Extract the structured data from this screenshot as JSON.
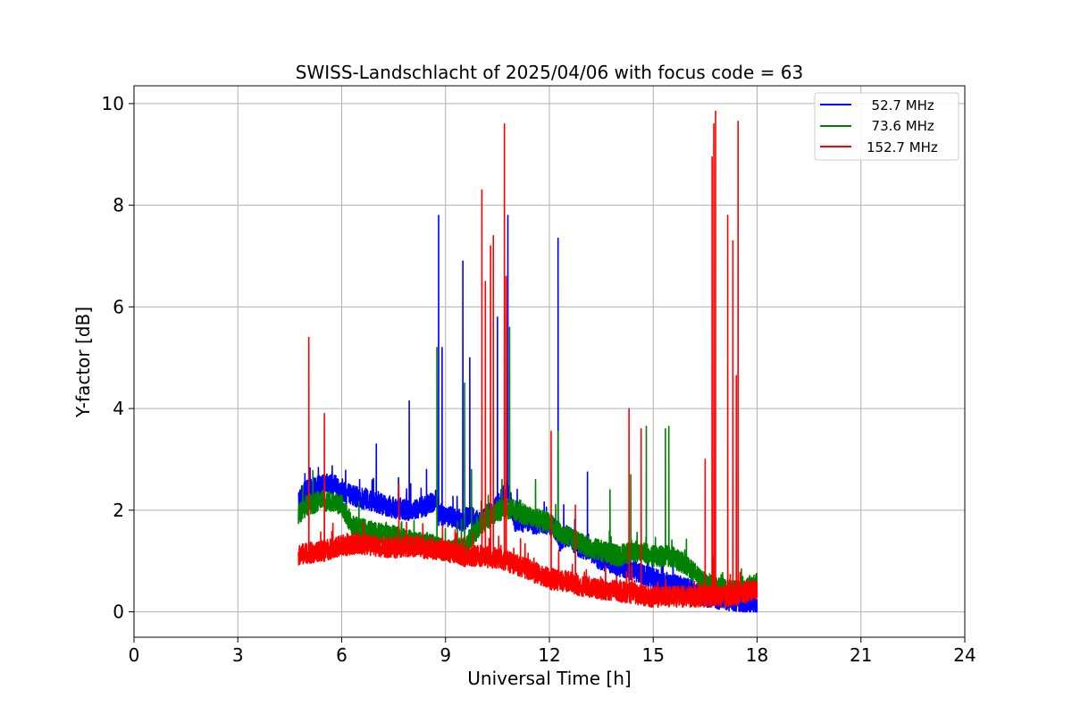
{
  "chart_data": {
    "type": "line",
    "title": "SWISS-Landschlacht of 2025/04/06 with focus code = 63",
    "xlabel": "Universal Time [h]",
    "ylabel": "Y-factor [dB]",
    "xlim": [
      0,
      24
    ],
    "ylim": [
      -0.5,
      10.35
    ],
    "xticks": [
      0,
      3,
      6,
      9,
      12,
      15,
      18,
      21,
      24
    ],
    "yticks": [
      0,
      2,
      4,
      6,
      8,
      10
    ],
    "grid": true,
    "legend_position": "top-right",
    "series": [
      {
        "name": "  52.7 MHz",
        "color": "#0000ff",
        "x": [
          4.75,
          5.0,
          5.5,
          5.8,
          6.0,
          6.5,
          7.0,
          7.5,
          8.0,
          8.5,
          8.75,
          8.8,
          9.0,
          9.5,
          9.7,
          10.0,
          10.5,
          10.8,
          11.0,
          11.5,
          12.0,
          12.2,
          12.3,
          12.5,
          13.0,
          13.1,
          13.5,
          14.0,
          14.5,
          15.0,
          15.5,
          16.0,
          16.5,
          17.0,
          17.5,
          18.0
        ],
        "y": [
          2.2,
          2.4,
          2.5,
          2.5,
          2.35,
          2.25,
          2.15,
          2.05,
          2.0,
          2.1,
          2.2,
          1.9,
          1.9,
          1.8,
          1.9,
          1.75,
          2.1,
          2.4,
          1.8,
          1.75,
          1.7,
          1.6,
          1.4,
          1.5,
          1.2,
          1.25,
          1.0,
          0.9,
          0.8,
          0.65,
          0.55,
          0.45,
          0.3,
          0.25,
          0.2,
          0.1
        ],
        "spikes": [
          [
            7.0,
            3.3
          ],
          [
            7.95,
            4.15
          ],
          [
            8.45,
            2.8
          ],
          [
            8.8,
            7.8
          ],
          [
            8.9,
            5.2
          ],
          [
            9.5,
            6.9
          ],
          [
            9.7,
            5.0
          ],
          [
            10.5,
            5.8
          ],
          [
            10.8,
            7.8
          ],
          [
            12.25,
            7.35
          ],
          [
            13.1,
            2.75
          ]
        ]
      },
      {
        "name": "  73.6 MHz",
        "color": "#008000",
        "x": [
          4.75,
          5.0,
          5.5,
          6.0,
          6.3,
          6.5,
          7.0,
          7.5,
          8.0,
          8.5,
          9.0,
          9.5,
          10.0,
          10.5,
          11.0,
          11.5,
          12.0,
          12.3,
          12.5,
          13.0,
          13.5,
          14.0,
          14.5,
          15.0,
          15.5,
          16.0,
          16.5,
          17.0,
          17.5,
          18.0
        ],
        "y": [
          1.9,
          2.1,
          2.2,
          2.1,
          1.7,
          1.65,
          1.55,
          1.5,
          1.4,
          1.35,
          1.2,
          1.25,
          1.7,
          2.0,
          2.0,
          1.85,
          1.75,
          1.55,
          1.5,
          1.3,
          1.2,
          1.1,
          1.2,
          1.1,
          1.1,
          0.9,
          0.55,
          0.45,
          0.4,
          0.55
        ],
        "spikes": [
          [
            8.75,
            5.2
          ],
          [
            9.55,
            4.5
          ],
          [
            9.75,
            2.8
          ],
          [
            10.85,
            5.6
          ],
          [
            11.6,
            2.6
          ],
          [
            12.25,
            3.55
          ],
          [
            13.75,
            2.4
          ],
          [
            14.35,
            2.7
          ],
          [
            14.8,
            3.65
          ],
          [
            15.35,
            3.6
          ],
          [
            15.45,
            3.65
          ]
        ]
      },
      {
        "name": "152.7 MHz",
        "color": "#ff0000",
        "x": [
          4.75,
          5.0,
          5.5,
          6.0,
          6.5,
          7.0,
          7.5,
          8.0,
          8.5,
          9.0,
          9.5,
          10.0,
          10.5,
          11.0,
          11.5,
          12.0,
          12.5,
          13.0,
          13.5,
          14.0,
          14.5,
          15.0,
          15.5,
          16.0,
          16.5,
          17.0,
          17.5,
          18.0
        ],
        "y": [
          1.1,
          1.15,
          1.2,
          1.3,
          1.35,
          1.3,
          1.25,
          1.3,
          1.25,
          1.2,
          1.1,
          1.1,
          1.05,
          0.95,
          0.8,
          0.65,
          0.6,
          0.5,
          0.45,
          0.4,
          0.35,
          0.3,
          0.3,
          0.3,
          0.3,
          0.3,
          0.35,
          0.45
        ],
        "spikes": [
          [
            5.05,
            5.4
          ],
          [
            5.5,
            3.9
          ],
          [
            7.65,
            2.5
          ],
          [
            10.05,
            8.3
          ],
          [
            10.15,
            6.5
          ],
          [
            10.3,
            7.2
          ],
          [
            10.38,
            7.4
          ],
          [
            10.7,
            9.6
          ],
          [
            10.75,
            6.6
          ],
          [
            12.05,
            3.55
          ],
          [
            12.75,
            2.1
          ],
          [
            14.3,
            4.0
          ],
          [
            14.65,
            3.6
          ],
          [
            16.5,
            3.0
          ],
          [
            16.7,
            8.95
          ],
          [
            16.75,
            9.6
          ],
          [
            16.8,
            9.85
          ],
          [
            17.15,
            7.8
          ],
          [
            17.3,
            7.3
          ],
          [
            17.4,
            4.65
          ],
          [
            17.45,
            9.65
          ]
        ]
      }
    ]
  }
}
